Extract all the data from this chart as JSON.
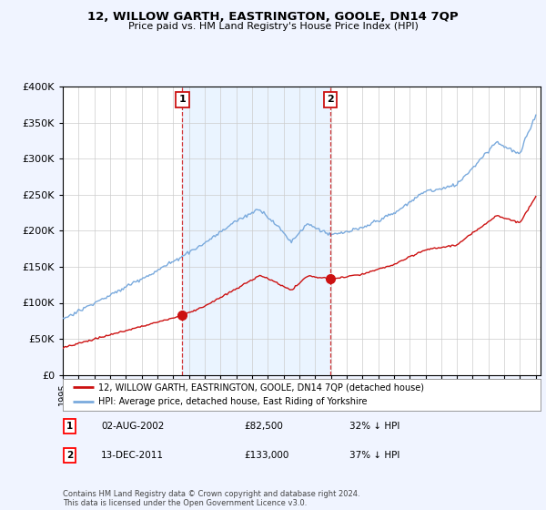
{
  "title": "12, WILLOW GARTH, EASTRINGTON, GOOLE, DN14 7QP",
  "subtitle": "Price paid vs. HM Land Registry's House Price Index (HPI)",
  "ylim": [
    0,
    400000
  ],
  "yticks": [
    0,
    50000,
    100000,
    150000,
    200000,
    250000,
    300000,
    350000,
    400000
  ],
  "hpi_color": "#7aaadd",
  "hpi_fill_color": "#ddeeff",
  "price_color": "#cc1111",
  "marker1_date": 2002.58,
  "marker1_price": 82500,
  "marker1_label": "02-AUG-2002",
  "marker1_amount": "£82,500",
  "marker1_pct": "32% ↓ HPI",
  "marker2_date": 2011.96,
  "marker2_price": 133000,
  "marker2_label": "13-DEC-2011",
  "marker2_amount": "£133,000",
  "marker2_pct": "37% ↓ HPI",
  "legend_line1": "12, WILLOW GARTH, EASTRINGTON, GOOLE, DN14 7QP (detached house)",
  "legend_line2": "HPI: Average price, detached house, East Riding of Yorkshire",
  "footnote": "Contains HM Land Registry data © Crown copyright and database right 2024.\nThis data is licensed under the Open Government Licence v3.0.",
  "background_color": "#f0f4ff",
  "plot_bg_color": "#ffffff",
  "shade_color": "#ddeeff"
}
